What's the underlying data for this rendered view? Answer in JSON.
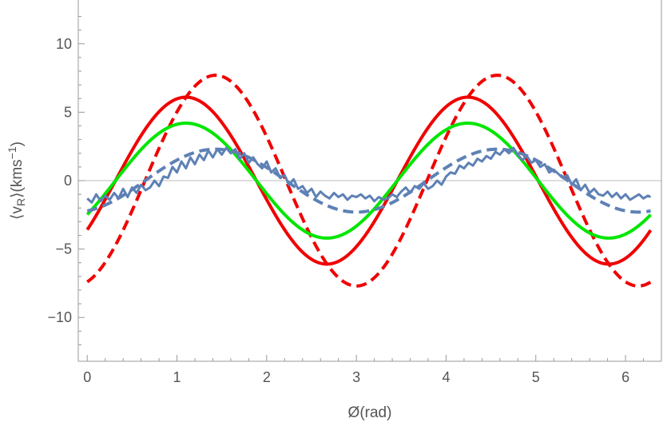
{
  "chart_data": {
    "type": "line",
    "title": "",
    "xlabel": "Ø(rad)",
    "ylabel": {
      "prefix": "⟨v",
      "subscript": "R",
      "middle": "⟩(kms",
      "superscript": "−1",
      "suffix": ")"
    },
    "xlim": [
      -0.1,
      6.4
    ],
    "ylim": [
      -13.2,
      13.2
    ],
    "xticks": [
      0,
      1,
      2,
      3,
      4,
      5,
      6
    ],
    "yticks": [
      -10,
      -5,
      0,
      5,
      10
    ],
    "ytick_labels": [
      "−10",
      "−5",
      "0",
      "5",
      "10"
    ],
    "grid": false,
    "zero_line": true,
    "legend": "none",
    "series": [
      {
        "color": "#f00000",
        "style": "solid",
        "model": "sine",
        "amplitude": 6.1,
        "period": 3.14159,
        "peak_x": 1.1
      },
      {
        "color": "#f00000",
        "style": "dashed",
        "model": "sine",
        "amplitude": 7.7,
        "period": 3.14159,
        "peak_x": 1.43
      },
      {
        "color": "#00e600",
        "style": "solid",
        "model": "sine",
        "amplitude": 4.2,
        "period": 3.14159,
        "peak_x": 1.1
      },
      {
        "color": "#5e81b5",
        "style": "dashed",
        "model": "sine",
        "amplitude": 2.3,
        "period": 3.14159,
        "peak_x": 1.43
      },
      {
        "color": "#5e81b5",
        "style": "solid",
        "model": "points",
        "x": [
          0,
          0.05,
          0.1,
          0.15,
          0.2,
          0.25,
          0.3,
          0.35,
          0.4,
          0.45,
          0.5,
          0.55,
          0.6,
          0.65,
          0.7,
          0.75,
          0.8,
          0.85,
          0.9,
          0.95,
          1.0,
          1.05,
          1.1,
          1.15,
          1.2,
          1.25,
          1.3,
          1.35,
          1.4,
          1.45,
          1.5,
          1.55,
          1.6,
          1.65,
          1.7,
          1.75,
          1.8,
          1.85,
          1.9,
          1.95,
          2.0,
          2.05,
          2.1,
          2.15,
          2.2,
          2.25,
          2.3,
          2.35,
          2.4,
          2.45,
          2.5,
          2.55,
          2.6,
          2.65,
          2.7,
          2.75,
          2.8,
          2.85,
          2.9,
          2.95,
          3.0,
          3.05,
          3.1,
          3.15,
          3.2,
          3.25,
          3.3,
          3.35,
          3.4,
          3.45,
          3.5,
          3.55,
          3.6,
          3.65,
          3.7,
          3.75,
          3.8,
          3.85,
          3.9,
          3.95,
          4.0,
          4.05,
          4.1,
          4.15,
          4.2,
          4.25,
          4.3,
          4.35,
          4.4,
          4.45,
          4.5,
          4.55,
          4.6,
          4.65,
          4.7,
          4.75,
          4.8,
          4.85,
          4.9,
          4.95,
          5.0,
          5.05,
          5.1,
          5.15,
          5.2,
          5.25,
          5.3,
          5.35,
          5.4,
          5.45,
          5.5,
          5.55,
          5.6,
          5.65,
          5.7,
          5.75,
          5.8,
          5.85,
          5.9,
          5.95,
          6.0,
          6.05,
          6.1,
          6.15,
          6.2,
          6.25,
          6.28
        ],
        "y": [
          -1.3,
          -1.6,
          -1.0,
          -1.5,
          -1.1,
          -1.4,
          -0.9,
          -1.3,
          -0.6,
          -1.2,
          -0.5,
          -0.9,
          -0.3,
          -0.7,
          -0.5,
          0.0,
          -0.4,
          0.3,
          0.2,
          1.0,
          0.6,
          1.4,
          0.9,
          1.7,
          1.2,
          1.9,
          1.5,
          2.2,
          1.7,
          2.3,
          1.9,
          2.4,
          2.0,
          2.3,
          1.6,
          2.0,
          1.3,
          1.7,
          1.2,
          0.9,
          1.4,
          0.6,
          0.9,
          0.2,
          0.4,
          -0.3,
          0.1,
          -0.6,
          -0.4,
          -0.9,
          -0.6,
          -1.2,
          -0.8,
          -1.1,
          -1.3,
          -0.9,
          -1.2,
          -1.0,
          -1.4,
          -1.1,
          -1.2,
          -1.0,
          -1.3,
          -1.1,
          -1.5,
          -1.2,
          -1.4,
          -1.3,
          -1.0,
          -1.2,
          -0.8,
          -0.5,
          -0.9,
          -0.4,
          -0.6,
          -0.2,
          -0.6,
          -0.4,
          0.0,
          -0.3,
          0.3,
          0.6,
          0.5,
          1.1,
          0.9,
          1.3,
          1.1,
          1.6,
          1.4,
          1.8,
          1.6,
          2.1,
          1.9,
          2.3,
          2.0,
          2.4,
          1.9,
          1.5,
          1.8,
          1.3,
          1.5,
          1.0,
          1.2,
          0.6,
          0.8,
          0.5,
          0.2,
          0.4,
          -0.3,
          0.1,
          -0.7,
          -0.3,
          -0.9,
          -0.6,
          -1.0,
          -1.1,
          -0.8,
          -1.2,
          -0.9,
          -1.3,
          -1.0,
          -1.4,
          -1.2,
          -1.0,
          -1.3,
          -1.1,
          -1.2
        ]
      }
    ]
  }
}
